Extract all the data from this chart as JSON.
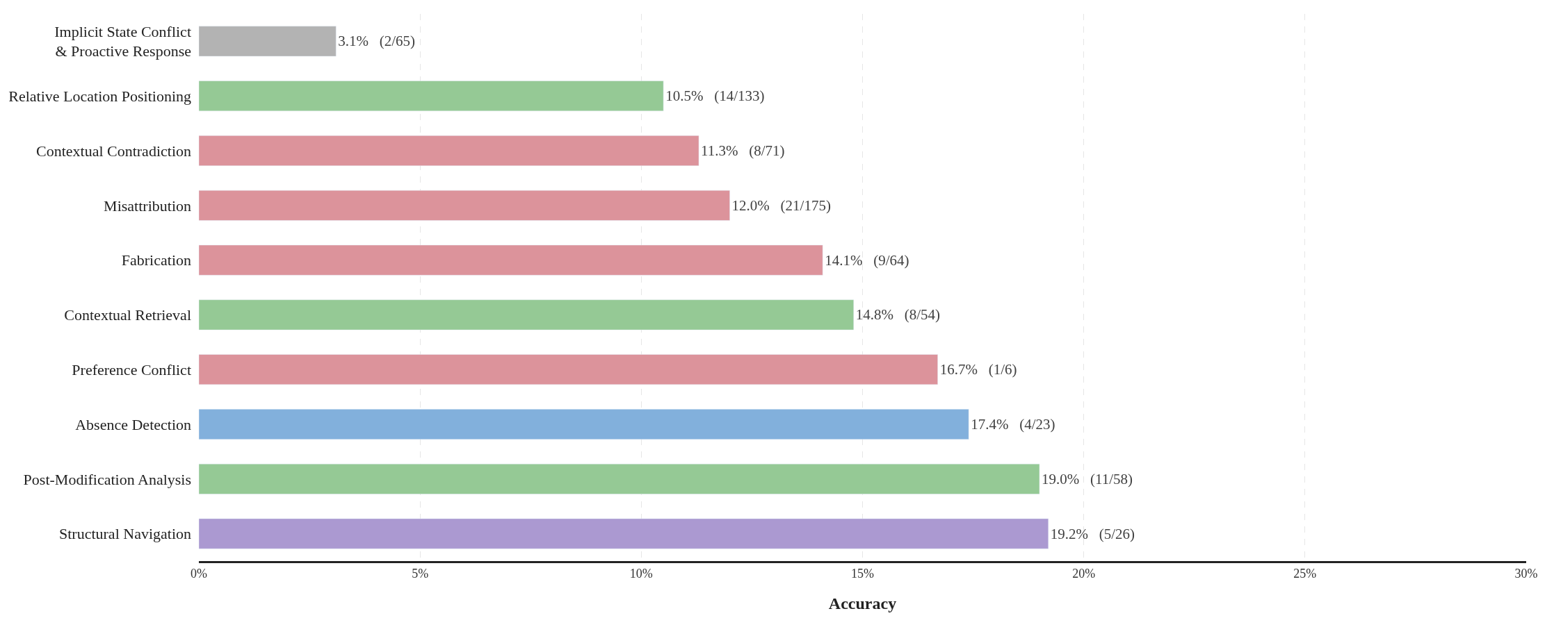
{
  "chart_data": {
    "type": "bar",
    "orientation": "horizontal",
    "xlabel": "Accuracy",
    "categories": [
      "Implicit State Conflict\n& Proactive Response",
      "Relative Location Positioning",
      "Contextual Contradiction",
      "Misattribution",
      "Fabrication",
      "Contextual Retrieval",
      "Preference Conflict",
      "Absence Detection",
      "Post-Modification Analysis",
      "Structural Navigation"
    ],
    "values": [
      3.1,
      10.5,
      11.3,
      12.0,
      14.1,
      14.8,
      16.7,
      17.4,
      19.0,
      19.2
    ],
    "value_labels": [
      "3.1%   (2/65)",
      "10.5%   (14/133)",
      "11.3%   (8/71)",
      "12.0%   (21/175)",
      "14.1%   (9/64)",
      "14.8%   (8/54)",
      "16.7%   (1/6)",
      "17.4%   (4/23)",
      "19.0%   (11/58)",
      "19.2%   (5/26)"
    ],
    "colors": [
      "#b3b3b3",
      "#95c995",
      "#dc939b",
      "#dc939b",
      "#dc939b",
      "#95c995",
      "#dc939b",
      "#82b0dc",
      "#95c995",
      "#ab99d1"
    ],
    "xlim": [
      0,
      30
    ],
    "xticks": [
      {
        "value": 0,
        "label": "0%"
      },
      {
        "value": 5,
        "label": "5%"
      },
      {
        "value": 10,
        "label": "10%"
      },
      {
        "value": 15,
        "label": "15%"
      },
      {
        "value": 20,
        "label": "20%"
      },
      {
        "value": 25,
        "label": "25%"
      },
      {
        "value": 30,
        "label": "30%"
      }
    ],
    "grid": "x"
  }
}
